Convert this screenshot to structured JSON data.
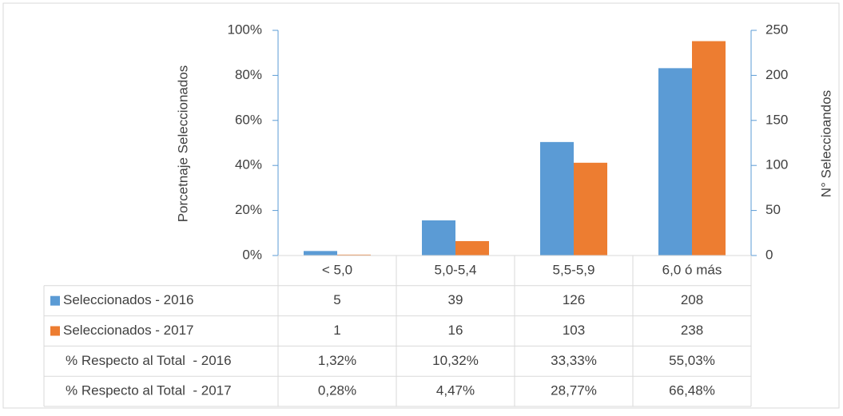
{
  "chart_data": {
    "type": "bar",
    "categories": [
      "< 5,0",
      "5,0-5,4",
      "5,5-5,9",
      "6,0 ó más"
    ],
    "series": [
      {
        "name": "Seleccionados - 2016",
        "color": "#5b9bd5",
        "values": [
          5,
          39,
          126,
          208
        ],
        "axis": "y2"
      },
      {
        "name": "Seleccionados - 2017",
        "color": "#ed7d31",
        "values": [
          1,
          16,
          103,
          238
        ],
        "axis": "y2"
      }
    ],
    "data_table": [
      {
        "name": "% Respecto al Total  - 2016",
        "values": [
          "1,32%",
          "10,32%",
          "33,33%",
          "55,03%"
        ]
      },
      {
        "name": "% Respecto al Total  - 2017",
        "values": [
          "0,28%",
          "4,47%",
          "28,77%",
          "66,48%"
        ]
      }
    ],
    "ylabel": "Porcetnaje Seleccionados",
    "y2label": "N° Seleccioandos",
    "ylim": [
      0,
      100
    ],
    "yticks": [
      {
        "value": 0,
        "label": "0%"
      },
      {
        "value": 20,
        "label": "20%"
      },
      {
        "value": 40,
        "label": "40%"
      },
      {
        "value": 60,
        "label": "60%"
      },
      {
        "value": 80,
        "label": "80%"
      },
      {
        "value": 100,
        "label": "100%"
      }
    ],
    "y2lim": [
      0,
      250
    ],
    "y2ticks": [
      0,
      50,
      100,
      150,
      200,
      250
    ],
    "axis_color": "#5b9bd5"
  }
}
